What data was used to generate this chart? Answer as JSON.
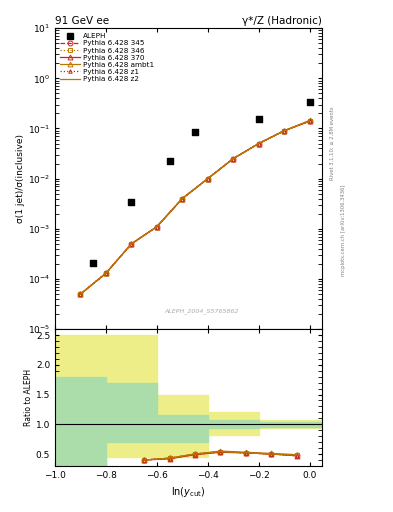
{
  "title_left": "91 GeV ee",
  "title_right": "γ*/Z (Hadronic)",
  "ylabel_main": "σ(1 jet)/σ(inclusive)",
  "ylabel_ratio": "Ratio to ALEPH",
  "xlabel": "ln(y_{cut})",
  "watermark": "ALEPH_2004_S5765862",
  "right_label_top": "Rivet 3.1.10; ≥ 2.8M events",
  "right_label_bot": "mcplots.cern.ch [arXiv:1306.3436]",
  "aleph_x": [
    -0.85,
    -0.7,
    -0.55,
    -0.45,
    -0.2,
    0.0
  ],
  "aleph_y": [
    0.00021,
    0.0035,
    0.022,
    0.085,
    0.155,
    0.33
  ],
  "mc_x": [
    -0.9,
    -0.8,
    -0.7,
    -0.6,
    -0.5,
    -0.4,
    -0.3,
    -0.2,
    -0.1,
    0.0
  ],
  "mc_345_y": [
    5e-05,
    0.00013,
    0.0005,
    0.0011,
    0.004,
    0.01,
    0.025,
    0.05,
    0.09,
    0.14
  ],
  "mc_346_y": [
    5e-05,
    0.00013,
    0.0005,
    0.0011,
    0.004,
    0.01,
    0.025,
    0.05,
    0.09,
    0.14
  ],
  "mc_370_y": [
    5e-05,
    0.00013,
    0.0005,
    0.0011,
    0.004,
    0.01,
    0.025,
    0.05,
    0.09,
    0.14
  ],
  "mc_ambt1_y": [
    5e-05,
    0.00013,
    0.0005,
    0.0011,
    0.004,
    0.01,
    0.025,
    0.05,
    0.09,
    0.145
  ],
  "mc_z1_y": [
    5e-05,
    0.00013,
    0.0005,
    0.0011,
    0.004,
    0.01,
    0.025,
    0.05,
    0.09,
    0.14
  ],
  "mc_z2_y": [
    5e-05,
    0.00013,
    0.0005,
    0.0011,
    0.004,
    0.01,
    0.025,
    0.05,
    0.09,
    0.14
  ],
  "ratio_x": [
    -0.65,
    -0.55,
    -0.45,
    -0.35,
    -0.25,
    -0.15,
    -0.05
  ],
  "ratio_345_y": [
    0.4,
    0.43,
    0.5,
    0.54,
    0.52,
    0.5,
    0.48
  ],
  "ratio_346_y": [
    0.4,
    0.43,
    0.5,
    0.54,
    0.52,
    0.5,
    0.48
  ],
  "ratio_370_y": [
    0.4,
    0.42,
    0.49,
    0.53,
    0.52,
    0.5,
    0.47
  ],
  "ratio_ambt1_y": [
    0.4,
    0.43,
    0.5,
    0.55,
    0.53,
    0.51,
    0.49
  ],
  "ratio_z1_y": [
    0.4,
    0.42,
    0.49,
    0.53,
    0.52,
    0.5,
    0.47
  ],
  "ratio_z2_y": [
    0.4,
    0.43,
    0.5,
    0.54,
    0.52,
    0.5,
    0.48
  ],
  "green_band_edges": [
    -1.0,
    -0.8,
    -0.6,
    -0.4,
    -0.2,
    0.05
  ],
  "green_band_lo": [
    0.0,
    0.7,
    0.7,
    0.93,
    0.96,
    0.97
  ],
  "green_band_hi": [
    1.8,
    1.7,
    1.15,
    1.08,
    1.04,
    1.03
  ],
  "yellow_band_edges": [
    -1.0,
    -0.8,
    -0.6,
    -0.4,
    -0.2,
    0.05
  ],
  "yellow_band_lo": [
    0.35,
    0.45,
    0.45,
    0.82,
    0.94,
    0.95
  ],
  "yellow_band_hi": [
    2.5,
    2.5,
    1.5,
    1.2,
    1.07,
    1.05
  ],
  "color_red": "#cc2222",
  "color_orange": "#bb7700",
  "color_green_band": "#aaddaa",
  "color_yellow_band": "#eeee88",
  "xlim": [
    -1.0,
    0.05
  ],
  "ylim_main": [
    1e-05,
    10
  ],
  "ylim_ratio": [
    0.3,
    2.6
  ]
}
